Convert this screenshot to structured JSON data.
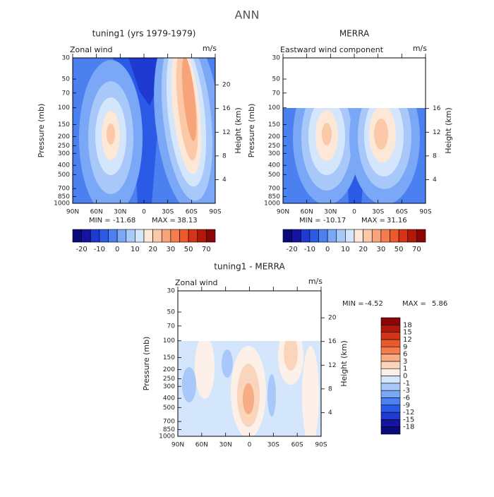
{
  "title": "ANN",
  "chart_data": [
    {
      "type": "contour",
      "title": "tuning1 (yrs 1979-1979)",
      "left_label": "Zonal wind",
      "units": "m/s",
      "ylabel": "Pressure (mb)",
      "y2label": "Height (km)",
      "log_y": true,
      "ylim": [
        1000,
        30
      ],
      "yticks": [
        30,
        50,
        70,
        100,
        150,
        200,
        250,
        300,
        400,
        500,
        700,
        850,
        1000
      ],
      "y2ticks": [
        4,
        8,
        12,
        16,
        20
      ],
      "xlim": [
        90,
        -90
      ],
      "xticks": [
        {
          "value": 90,
          "label": "90N"
        },
        {
          "value": 60,
          "label": "60N"
        },
        {
          "value": 30,
          "label": "30N"
        },
        {
          "value": 0,
          "label": "0"
        },
        {
          "value": -30,
          "label": "30S"
        },
        {
          "value": -60,
          "label": "60S"
        },
        {
          "value": -90,
          "label": "90S"
        }
      ],
      "stats": {
        "min_label": "MIN =",
        "min": -11.68,
        "max_label": "MAX =",
        "max": 38.13
      },
      "colorbar": {
        "orientation": "horizontal",
        "levels": [
          -20,
          -15,
          -10,
          -5,
          0,
          5,
          10,
          15,
          20,
          25,
          30,
          40,
          50,
          60,
          70
        ],
        "level_labels": [
          "-20",
          null,
          "-10",
          null,
          "0",
          null,
          "10",
          null,
          "20",
          null,
          "30",
          null,
          "50",
          null,
          "70"
        ],
        "colors": [
          "#0a0a7a",
          "#1414a0",
          "#1e3ad0",
          "#2a5ae6",
          "#4a80f0",
          "#7aa8f6",
          "#a8c8fa",
          "#d4e6fc",
          "#fde8d8",
          "#fbc8a8",
          "#f8a47a",
          "#f47c4e",
          "#ec5a2c",
          "#d43418",
          "#b01808",
          "#8a0606"
        ]
      }
    },
    {
      "type": "contour",
      "title": "MERRA",
      "left_label": "Eastward wind component",
      "units": "m/s",
      "ylabel": "Pressure (mb)",
      "y2label": "Height (km)",
      "log_y": true,
      "ylim": [
        1000,
        30
      ],
      "yticks": [
        30,
        50,
        70,
        100,
        150,
        200,
        250,
        300,
        400,
        500,
        700,
        850,
        1000
      ],
      "y2ticks": [
        4,
        8,
        12,
        16
      ],
      "xlim": [
        90,
        -90
      ],
      "xticks": [
        {
          "value": 90,
          "label": "90N"
        },
        {
          "value": 60,
          "label": "60N"
        },
        {
          "value": 30,
          "label": "30N"
        },
        {
          "value": 0,
          "label": "0"
        },
        {
          "value": -30,
          "label": "30S"
        },
        {
          "value": -60,
          "label": "60S"
        },
        {
          "value": -90,
          "label": "90S"
        }
      ],
      "stats": {
        "min_label": "MIN =",
        "min": -10.17,
        "max_label": "MAX =",
        "max": 31.16
      },
      "colorbar": {
        "orientation": "horizontal",
        "levels": [
          -20,
          -15,
          -10,
          -5,
          0,
          5,
          10,
          15,
          20,
          25,
          30,
          40,
          50,
          60,
          70
        ],
        "level_labels": [
          "-20",
          null,
          "-10",
          null,
          "0",
          null,
          "10",
          null,
          "20",
          null,
          "30",
          null,
          "50",
          null,
          "70"
        ],
        "colors": [
          "#0a0a7a",
          "#1414a0",
          "#1e3ad0",
          "#2a5ae6",
          "#4a80f0",
          "#7aa8f6",
          "#a8c8fa",
          "#d4e6fc",
          "#fde8d8",
          "#fbc8a8",
          "#f8a47a",
          "#f47c4e",
          "#ec5a2c",
          "#d43418",
          "#b01808",
          "#8a0606"
        ]
      }
    },
    {
      "type": "contour",
      "title": "tuning1 - MERRA",
      "left_label": "Zonal wind",
      "units": "m/s",
      "ylabel": "Pressure (mb)",
      "y2label": "Height (km)",
      "log_y": true,
      "ylim": [
        1000,
        30
      ],
      "yticks": [
        30,
        50,
        70,
        100,
        150,
        200,
        250,
        300,
        400,
        500,
        700,
        850,
        1000
      ],
      "y2ticks": [
        4,
        8,
        12,
        16,
        20
      ],
      "xlim": [
        90,
        -90
      ],
      "xticks": [
        {
          "value": 90,
          "label": "90N"
        },
        {
          "value": 60,
          "label": "60N"
        },
        {
          "value": 30,
          "label": "30N"
        },
        {
          "value": 0,
          "label": "0"
        },
        {
          "value": -30,
          "label": "30S"
        },
        {
          "value": -60,
          "label": "60S"
        },
        {
          "value": -90,
          "label": "90S"
        }
      ],
      "stats": {
        "min_label": "MIN =",
        "min": -4.52,
        "max_label": "MAX =",
        "max": 5.86
      },
      "colorbar": {
        "orientation": "vertical",
        "levels": [
          -18,
          -15,
          -12,
          -9,
          -6,
          -3,
          -1,
          0,
          1,
          3,
          6,
          9,
          12,
          15,
          18
        ],
        "colors": [
          "#0a0a7a",
          "#1414a0",
          "#1e3ad0",
          "#2a5ae6",
          "#4a80f0",
          "#7aa8f6",
          "#a8c8fa",
          "#d4e6fc",
          "#fdf0e8",
          "#fbd4bc",
          "#f8ac86",
          "#f47c4e",
          "#ec5a2c",
          "#d43418",
          "#b01808",
          "#8a0606"
        ]
      }
    }
  ]
}
